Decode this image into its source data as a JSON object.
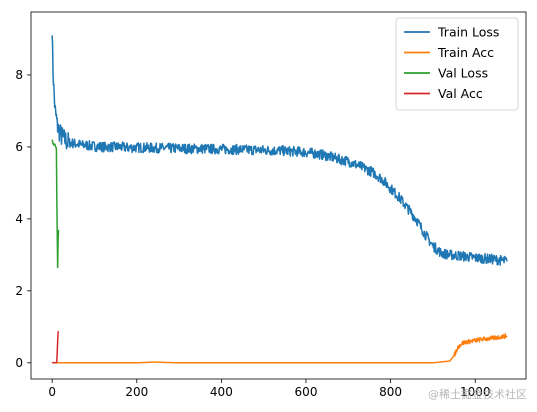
{
  "chart_data": {
    "type": "line",
    "title": "",
    "xlabel": "",
    "ylabel": "",
    "xlim": [
      -50,
      1120
    ],
    "ylim": [
      -0.45,
      9.75
    ],
    "xticks": [
      0,
      200,
      400,
      600,
      800,
      1000
    ],
    "yticks": [
      0,
      2,
      4,
      6,
      8
    ],
    "grid": false,
    "legend": "top-right",
    "series": [
      {
        "name": "Train Loss",
        "color": "#1f77b4",
        "x": [
          0,
          1,
          2,
          3,
          4,
          5,
          6,
          7,
          8,
          10,
          12,
          15,
          18,
          22,
          26,
          30,
          35,
          40,
          50,
          60,
          70,
          80,
          90,
          100,
          120,
          140,
          160,
          180,
          200,
          220,
          240,
          260,
          280,
          300,
          320,
          340,
          360,
          380,
          400,
          420,
          440,
          460,
          480,
          500,
          520,
          540,
          560,
          580,
          600,
          620,
          640,
          660,
          680,
          700,
          720,
          740,
          760,
          780,
          800,
          820,
          840,
          860,
          880,
          900,
          920,
          940,
          960,
          980,
          1000,
          1020,
          1040,
          1060,
          1075
        ],
        "y": [
          9.4,
          8.6,
          8.2,
          7.9,
          7.6,
          7.4,
          7.2,
          7.0,
          6.9,
          6.8,
          6.6,
          6.5,
          6.4,
          6.3,
          6.25,
          6.2,
          6.15,
          6.12,
          6.1,
          6.08,
          6.05,
          6.05,
          6.03,
          6.02,
          6.0,
          6.0,
          6.0,
          5.98,
          5.98,
          5.98,
          5.97,
          5.97,
          5.96,
          5.96,
          5.95,
          5.95,
          5.95,
          5.94,
          5.94,
          5.93,
          5.93,
          5.92,
          5.92,
          5.91,
          5.9,
          5.9,
          5.88,
          5.87,
          5.85,
          5.82,
          5.78,
          5.72,
          5.65,
          5.6,
          5.5,
          5.4,
          5.28,
          5.1,
          4.85,
          4.6,
          4.3,
          4.0,
          3.6,
          3.25,
          3.05,
          3.0,
          2.98,
          2.95,
          2.92,
          2.9,
          2.88,
          2.85,
          2.82
        ]
      },
      {
        "name": "Train Acc",
        "color": "#ff7f0e",
        "x": [
          0,
          100,
          200,
          240,
          300,
          400,
          500,
          600,
          700,
          800,
          900,
          940,
          950,
          960,
          970,
          980,
          1000,
          1020,
          1040,
          1060,
          1075
        ],
        "y": [
          0.0,
          0.0,
          0.0,
          0.02,
          0.0,
          0.0,
          0.0,
          0.0,
          0.0,
          0.0,
          0.0,
          0.05,
          0.2,
          0.45,
          0.55,
          0.58,
          0.62,
          0.66,
          0.68,
          0.72,
          0.75
        ]
      },
      {
        "name": "Val Loss",
        "color": "#2ca02c",
        "x": [
          0,
          2,
          4,
          6,
          8,
          10,
          11,
          12,
          13,
          14,
          15
        ],
        "y": [
          6.2,
          6.1,
          6.05,
          6.08,
          6.02,
          5.95,
          4.6,
          3.6,
          2.65,
          3.4,
          3.7
        ]
      },
      {
        "name": "Val Acc",
        "color": "#d62728",
        "x": [
          0,
          2,
          4,
          6,
          8,
          10,
          11,
          12,
          13,
          14,
          15
        ],
        "y": [
          0.0,
          0.0,
          0.01,
          0.0,
          0.0,
          0.0,
          0.05,
          0.3,
          0.6,
          0.85,
          0.88
        ]
      }
    ]
  },
  "watermark": "@稀土掘金技术社区"
}
